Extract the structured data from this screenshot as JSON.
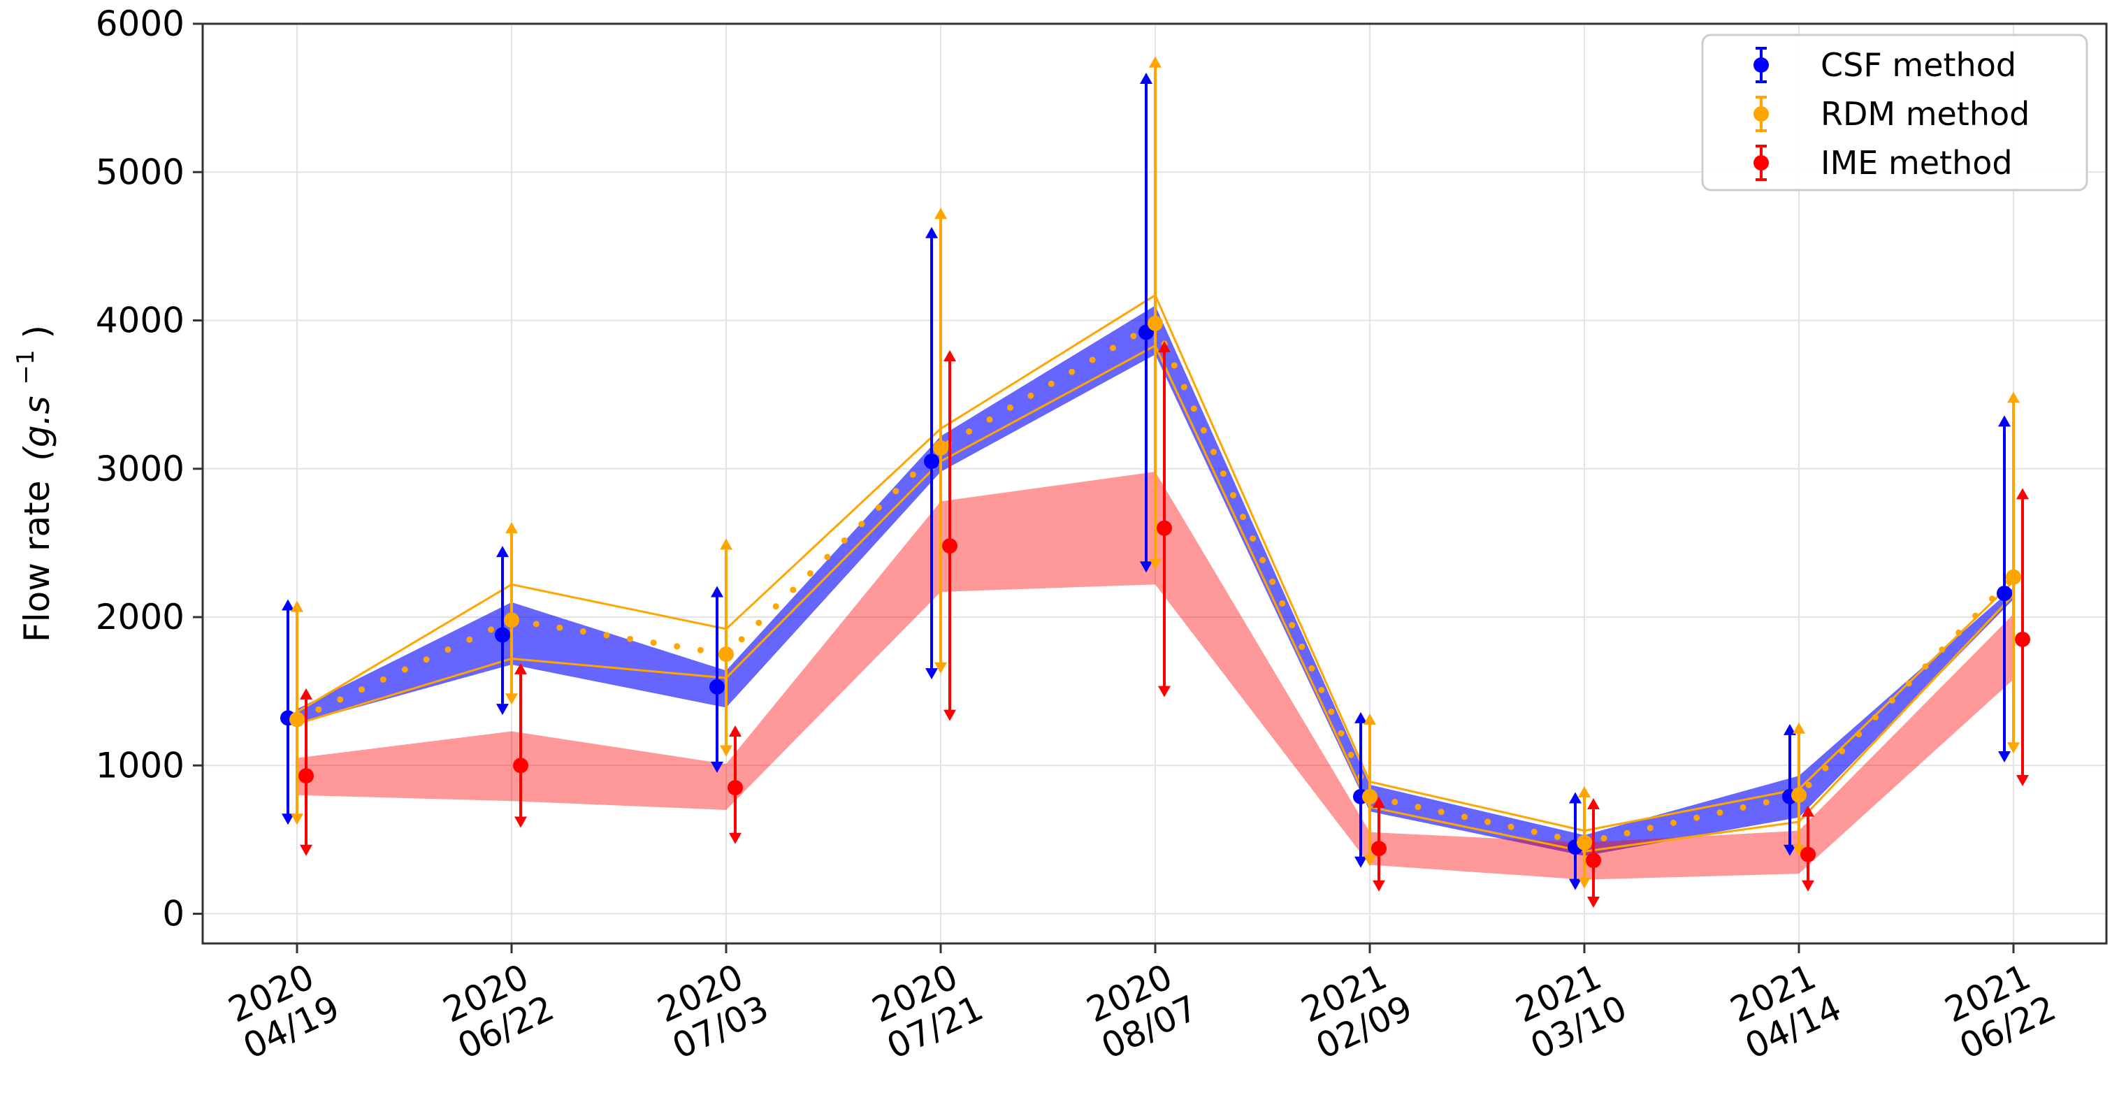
{
  "chart_data": {
    "type": "line",
    "title": "",
    "xlabel": "",
    "ylabel": "Flow rate",
    "ylabel_unit": "(g.s",
    "ylabel_exponent": "−1",
    "ylabel_close": ")",
    "ylim": [
      -200,
      6000
    ],
    "yticks": [
      "0",
      "1000",
      "2000",
      "3000",
      "4000",
      "5000",
      "6000"
    ],
    "grid": true,
    "legend_position": "top-right",
    "categories": [
      {
        "year": "2020",
        "date": "04/19"
      },
      {
        "year": "2020",
        "date": "06/22"
      },
      {
        "year": "2020",
        "date": "07/03"
      },
      {
        "year": "2020",
        "date": "07/21"
      },
      {
        "year": "2020",
        "date": "08/07"
      },
      {
        "year": "2021",
        "date": "02/09"
      },
      {
        "year": "2021",
        "date": "03/10"
      },
      {
        "year": "2021",
        "date": "04/14"
      },
      {
        "year": "2021",
        "date": "06/22"
      }
    ],
    "series": [
      {
        "name": "CSF method",
        "color": "#0000ff",
        "values": [
          1320,
          1880,
          1530,
          3050,
          3920,
          790,
          450,
          790,
          2160
        ],
        "err_low": [
          600,
          1340,
          950,
          1580,
          2300,
          310,
          160,
          390,
          1020
        ],
        "err_high": [
          2120,
          2480,
          2210,
          4630,
          5670,
          1360,
          820,
          1280,
          3360
        ],
        "band_low": [
          1280,
          1680,
          1390,
          2980,
          3770,
          690,
          390,
          650,
          2120
        ],
        "band_high": [
          1380,
          2100,
          1640,
          3220,
          4100,
          870,
          530,
          930,
          2200
        ]
      },
      {
        "name": "RDM method",
        "color": "#ffa500",
        "values": [
          1310,
          1980,
          1750,
          3140,
          3980,
          790,
          480,
          800,
          2270
        ],
        "err_low": [
          600,
          1410,
          1060,
          1620,
          2320,
          320,
          170,
          390,
          1080
        ],
        "err_high": [
          2110,
          2640,
          2530,
          4760,
          5780,
          1350,
          860,
          1290,
          3520
        ],
        "band_low": [
          1280,
          1720,
          1590,
          3050,
          3830,
          720,
          420,
          620,
          2150
        ],
        "band_high": [
          1360,
          2220,
          1920,
          3270,
          4170,
          890,
          560,
          840,
          2240
        ]
      },
      {
        "name": "IME method",
        "color": "#ff0000",
        "values": [
          930,
          1000,
          850,
          2480,
          2600,
          440,
          360,
          400,
          1850
        ],
        "err_low": [
          390,
          580,
          470,
          1300,
          1460,
          150,
          40,
          150,
          860
        ],
        "err_high": [
          1520,
          1690,
          1270,
          3800,
          3860,
          790,
          780,
          730,
          2870
        ],
        "band_low": [
          800,
          760,
          700,
          2170,
          2220,
          330,
          230,
          270,
          1580
        ],
        "band_high": [
          1050,
          1230,
          1010,
          2780,
          2980,
          550,
          480,
          560,
          2020
        ]
      }
    ]
  }
}
